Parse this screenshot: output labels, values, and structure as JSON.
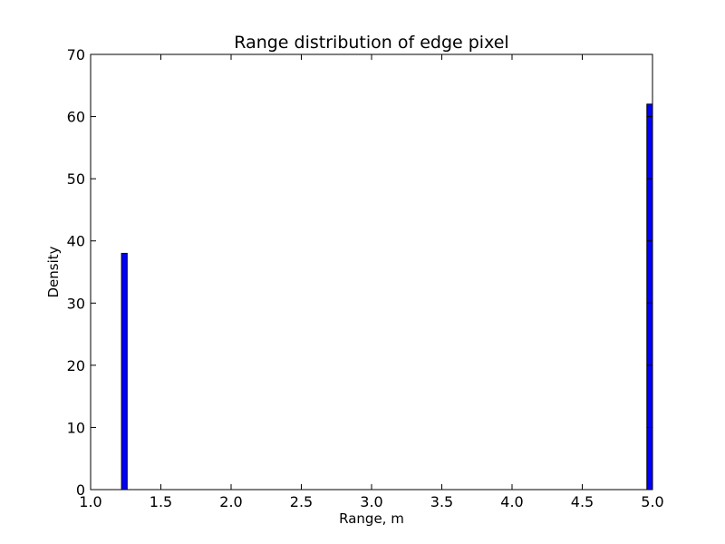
{
  "chart_data": {
    "type": "bar",
    "title": "Range distribution of edge pixel",
    "xlabel": "Range, m",
    "ylabel": "Density",
    "xlim": [
      1.0,
      5.0
    ],
    "ylim": [
      0,
      70
    ],
    "xticks": [
      1.0,
      1.5,
      2.0,
      2.5,
      3.0,
      3.5,
      4.0,
      4.5,
      5.0
    ],
    "xtick_labels": [
      "1.0",
      "1.5",
      "2.0",
      "2.5",
      "3.0",
      "3.5",
      "4.0",
      "4.5",
      "5.0"
    ],
    "yticks": [
      0,
      10,
      20,
      30,
      40,
      50,
      60,
      70
    ],
    "ytick_labels": [
      "0",
      "10",
      "20",
      "30",
      "40",
      "50",
      "60",
      "70"
    ],
    "grid": false,
    "bar_color": "#0000ff",
    "edge_color": "#000000",
    "bars": [
      {
        "x0": 1.22,
        "x1": 1.26,
        "value": 38
      },
      {
        "x0": 4.96,
        "x1": 5.0,
        "value": 62
      }
    ]
  }
}
